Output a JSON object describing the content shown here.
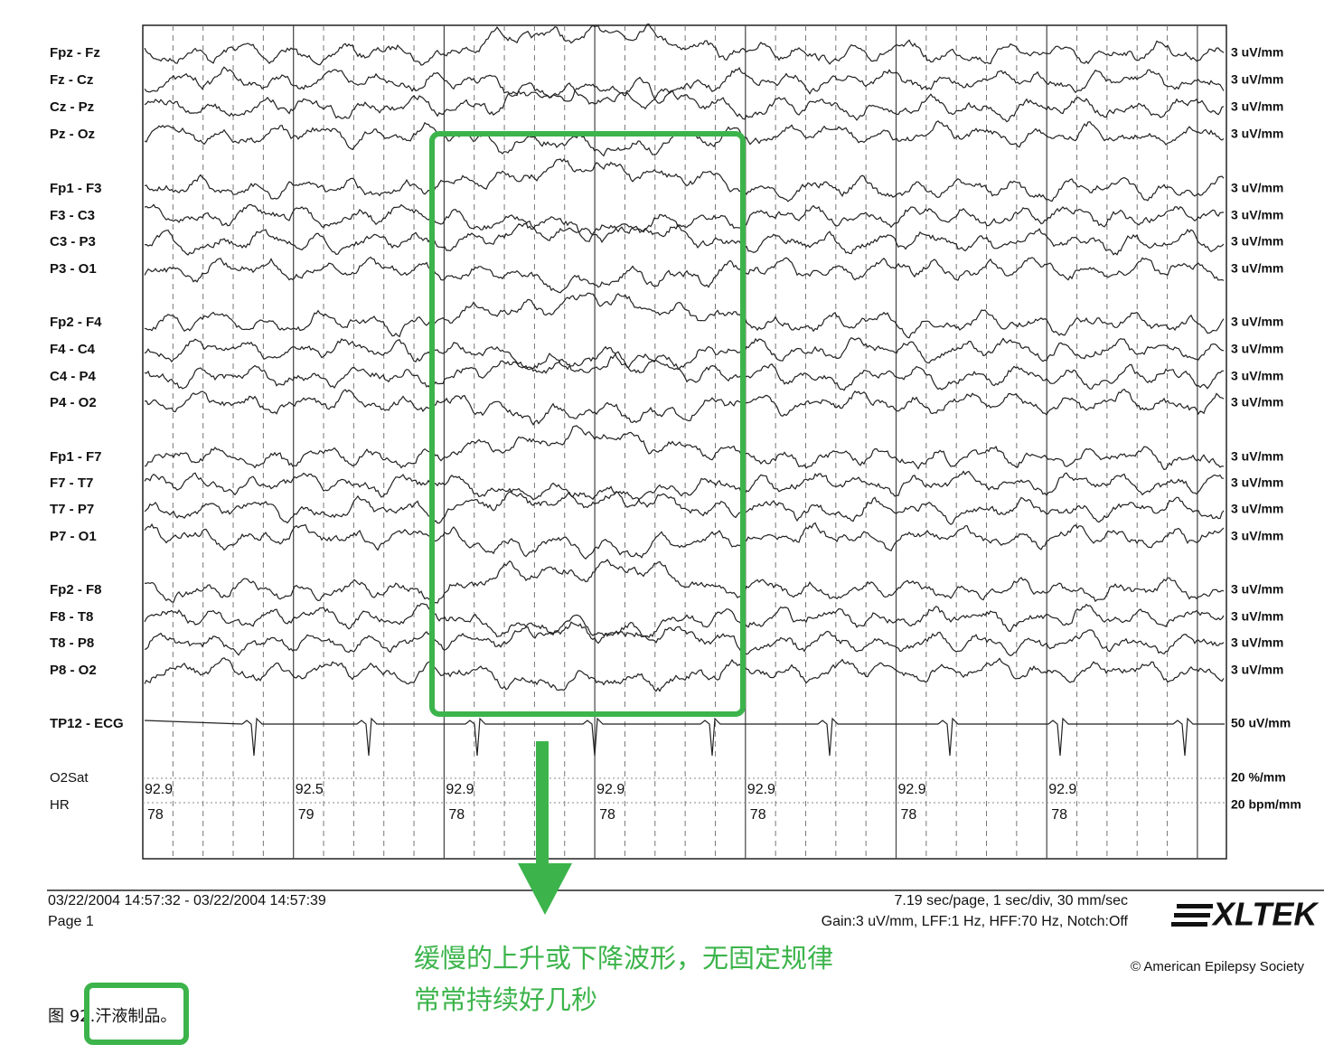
{
  "channels": [
    {
      "label": "Fpz - Fz",
      "scale": "3 uV/mm"
    },
    {
      "label": "Fz - Cz",
      "scale": "3 uV/mm"
    },
    {
      "label": "Cz - Pz",
      "scale": "3 uV/mm"
    },
    {
      "label": "Pz - Oz",
      "scale": "3 uV/mm"
    },
    {
      "label": "Fp1 - F3",
      "scale": "3 uV/mm"
    },
    {
      "label": "F3 - C3",
      "scale": "3 uV/mm"
    },
    {
      "label": "C3 - P3",
      "scale": "3 uV/mm"
    },
    {
      "label": "P3 - O1",
      "scale": "3 uV/mm"
    },
    {
      "label": "Fp2 - F4",
      "scale": "3 uV/mm"
    },
    {
      "label": "F4 - C4",
      "scale": "3 uV/mm"
    },
    {
      "label": "C4 - P4",
      "scale": "3 uV/mm"
    },
    {
      "label": "P4 - O2",
      "scale": "3 uV/mm"
    },
    {
      "label": "Fp1 - F7",
      "scale": "3 uV/mm"
    },
    {
      "label": "F7 - T7",
      "scale": "3 uV/mm"
    },
    {
      "label": "T7 - P7",
      "scale": "3 uV/mm"
    },
    {
      "label": "P7 - O1",
      "scale": "3 uV/mm"
    },
    {
      "label": "Fp2 - F8",
      "scale": "3 uV/mm"
    },
    {
      "label": "F8 - T8",
      "scale": "3 uV/mm"
    },
    {
      "label": "T8 - P8",
      "scale": "3 uV/mm"
    },
    {
      "label": "P8 - O2",
      "scale": "3 uV/mm"
    },
    {
      "label": "TP12 - ECG",
      "scale": "50 uV/mm"
    }
  ],
  "o2sat": {
    "label": "O2Sat",
    "scale": "20 %/mm",
    "values": [
      92.9,
      92.5,
      92.9,
      92.9,
      92.9,
      92.9,
      92.9
    ]
  },
  "hr": {
    "label": "HR",
    "scale": "20 bpm/mm",
    "values": [
      78,
      79,
      78,
      78,
      78,
      78,
      78
    ]
  },
  "footer": {
    "time_range": "03/22/2004 14:57:32 - 03/22/2004 14:57:39",
    "page": "Page 1",
    "timebase": "7.19 sec/page, 1 sec/div, 30 mm/sec",
    "settings": "Gain:3 uV/mm, LFF:1 Hz, HFF:70 Hz, Notch:Off"
  },
  "logo": "XLTEK",
  "copyright": "© American Epilepsy Society",
  "annotation": [
    "缓慢的上升或下降波形，无固定规律",
    "常常持续好几秒"
  ],
  "caption": "图 92.汗液制品。"
}
